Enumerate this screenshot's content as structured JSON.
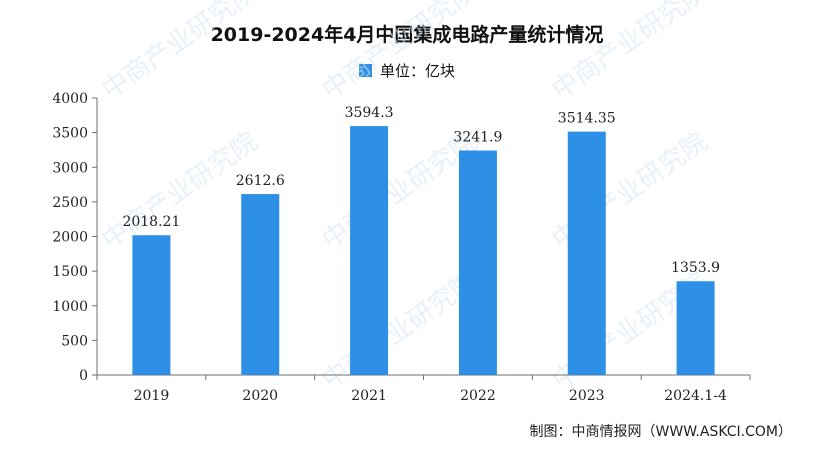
{
  "colors": {
    "bar": "#2e8fe6",
    "axis": "#6e6e6e",
    "text": "#222222",
    "watermark": "#d6e4f5"
  },
  "watermark": {
    "text": "中商产业研究院"
  },
  "footer": {
    "source": "制图：中商情报网（WWW.ASKCI.COM）"
  },
  "chart_data": {
    "type": "bar",
    "title": "2019-2024年4月中国集成电路产量统计情况",
    "legend": [
      "单位：亿块"
    ],
    "categories": [
      "2019",
      "2020",
      "2021",
      "2022",
      "2023",
      "2024.1-4"
    ],
    "values": [
      2018.21,
      2612.6,
      3594.3,
      3241.9,
      3514.35,
      1353.9
    ],
    "data_labels": [
      "2018.21",
      "2612.6",
      "3594.3",
      "3241.9",
      "3514.35",
      "1353.9"
    ],
    "ylim": [
      0,
      4000
    ],
    "yticks": [
      "0",
      "500",
      "1000",
      "1500",
      "2000",
      "2500",
      "3000",
      "3500",
      "4000"
    ],
    "grid": false,
    "legend_position": "top-center"
  }
}
